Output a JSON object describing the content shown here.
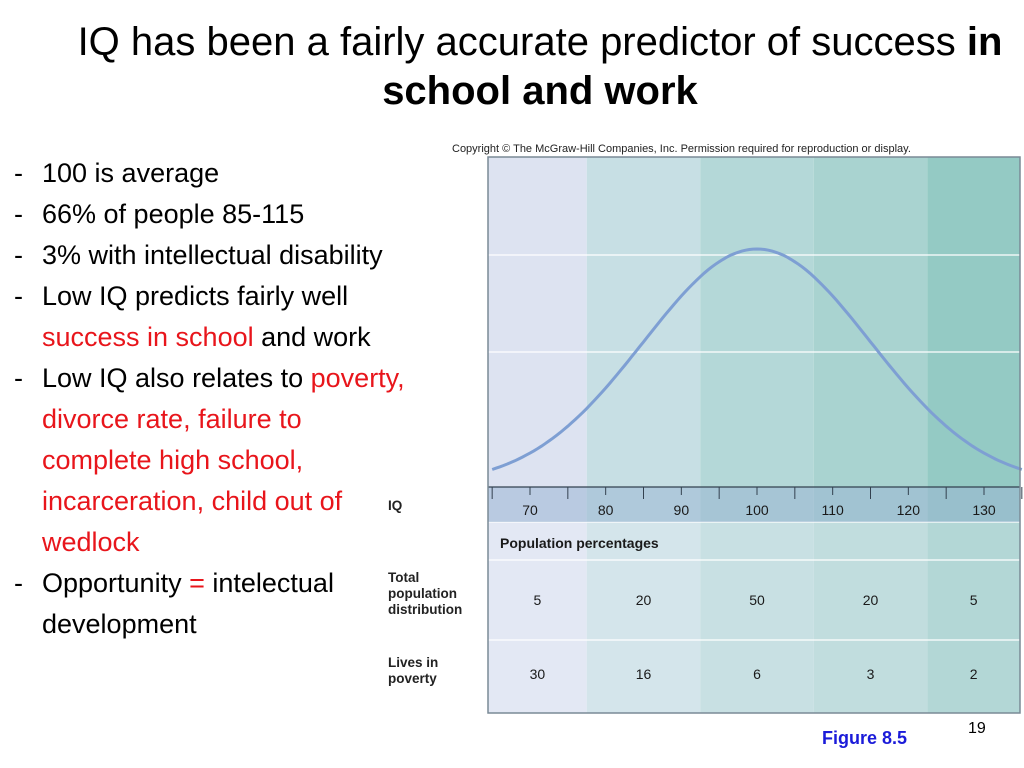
{
  "title": {
    "regular": "IQ has been a fairly accurate predictor of success",
    "bold": "in school and work"
  },
  "bullets": [
    {
      "dash": "-",
      "segments": [
        {
          "text": "100 is average",
          "red": false
        }
      ]
    },
    {
      "dash": "-",
      "segments": [
        {
          "text": "66% of people 85-115",
          "red": false
        }
      ]
    },
    {
      "dash": "-",
      "segments": [
        {
          "text": "3% with intellectual disability",
          "red": false
        }
      ]
    },
    {
      "dash": "-",
      "segments": [
        {
          "text": "Low IQ predicts fairly well ",
          "red": false
        },
        {
          "text": "success in school",
          "red": true
        },
        {
          "text": " and work",
          "red": false
        }
      ]
    },
    {
      "dash": "-",
      "segments": [
        {
          "text": "Low IQ also relates to ",
          "red": false
        },
        {
          "text": "poverty, divorce rate, failure to complete high school, incarceration, child out of wedlock",
          "red": true
        }
      ]
    },
    {
      "dash": "-",
      "segments": [
        {
          "text": "Opportunity ",
          "red": false
        },
        {
          "text": "=",
          "red": true
        },
        {
          "text": " intelectual development",
          "red": false
        }
      ]
    }
  ],
  "figure": {
    "copyright": "Copyright © The McGraw-Hill Companies, Inc. Permission required for reproduction or display.",
    "caption": "Figure 8.5",
    "axis_label": "IQ",
    "population_header": "Population percentages",
    "row_total_label": "Total population distribution",
    "row_poverty_label": "Lives in poverty",
    "colors": {
      "band1": "#dde3f1",
      "band2": "#c7dfe4",
      "band3": "#b4d8d8",
      "band4": "#a9d3d0",
      "band5": "#94cac4",
      "curve": "#7e9fd3",
      "table_band": "#eef2f8"
    }
  },
  "chart_data": {
    "type": "area",
    "title": "",
    "xlabel": "IQ",
    "ylabel": "",
    "x_ticks": [
      70,
      80,
      90,
      100,
      110,
      120,
      130
    ],
    "curve": {
      "distribution": "normal",
      "mean": 100,
      "sd": 15
    },
    "xlim": [
      65,
      135
    ],
    "grid": true,
    "table": {
      "header": "Population percentages",
      "rows": [
        {
          "label": "Total population distribution",
          "values": [
            5,
            20,
            50,
            20,
            5
          ]
        },
        {
          "label": "Lives in poverty",
          "values": [
            30,
            16,
            6,
            3,
            2
          ]
        }
      ]
    }
  },
  "page_number": "19"
}
